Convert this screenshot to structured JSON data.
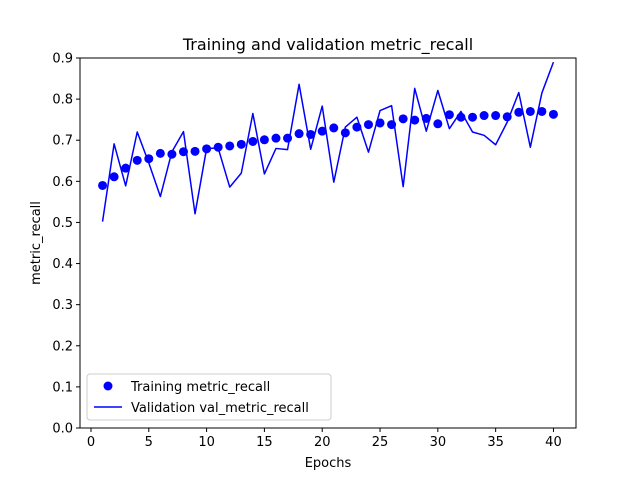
{
  "chart_data": {
    "type": "line",
    "title": "Training and validation metric_recall",
    "xlabel": "Epochs",
    "ylabel": "metric_recall",
    "xlim": [
      -0.95,
      41.95
    ],
    "ylim": [
      0,
      0.9
    ],
    "xticks": [
      0,
      5,
      10,
      15,
      20,
      25,
      30,
      35,
      40
    ],
    "yticks": [
      0.0,
      0.1,
      0.2,
      0.3,
      0.4,
      0.5,
      0.6,
      0.7,
      0.8,
      0.9
    ],
    "grid": false,
    "legend_position": "lower-left",
    "x": [
      1,
      2,
      3,
      4,
      5,
      6,
      7,
      8,
      9,
      10,
      11,
      12,
      13,
      14,
      15,
      16,
      17,
      18,
      19,
      20,
      21,
      22,
      23,
      24,
      25,
      26,
      27,
      28,
      29,
      30,
      31,
      32,
      33,
      34,
      35,
      36,
      37,
      38,
      39,
      40
    ],
    "series": [
      {
        "name": "Training metric_recall",
        "style": "markers",
        "color": "#0000ff",
        "values": [
          0.59,
          0.611,
          0.632,
          0.651,
          0.655,
          0.668,
          0.666,
          0.672,
          0.673,
          0.679,
          0.683,
          0.686,
          0.69,
          0.697,
          0.701,
          0.705,
          0.705,
          0.716,
          0.714,
          0.722,
          0.73,
          0.718,
          0.732,
          0.738,
          0.742,
          0.738,
          0.752,
          0.749,
          0.753,
          0.74,
          0.762,
          0.756,
          0.756,
          0.76,
          0.76,
          0.757,
          0.768,
          0.77,
          0.77,
          0.763
        ]
      },
      {
        "name": "Validation val_metric_recall",
        "style": "line",
        "color": "#0000ff",
        "values": [
          0.502,
          0.691,
          0.589,
          0.72,
          0.645,
          0.563,
          0.672,
          0.721,
          0.521,
          0.68,
          0.681,
          0.586,
          0.62,
          0.765,
          0.618,
          0.68,
          0.677,
          0.836,
          0.678,
          0.783,
          0.598,
          0.732,
          0.756,
          0.671,
          0.772,
          0.784,
          0.587,
          0.826,
          0.722,
          0.821,
          0.728,
          0.77,
          0.72,
          0.712,
          0.689,
          0.744,
          0.816,
          0.683,
          0.815,
          0.89
        ]
      }
    ]
  }
}
